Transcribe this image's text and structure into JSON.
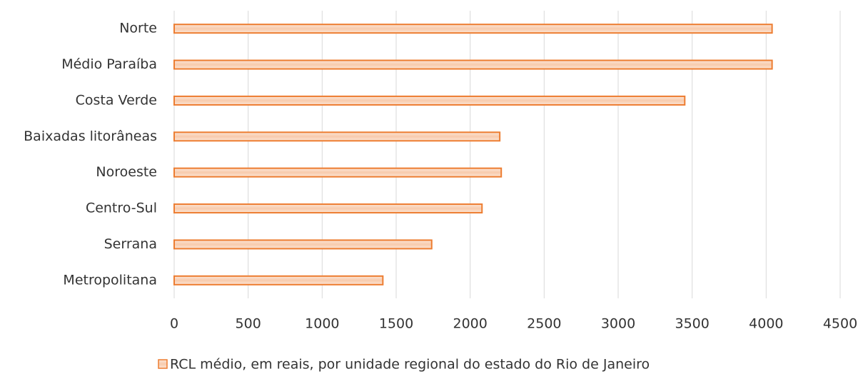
{
  "chart_data": {
    "type": "barh",
    "categories": [
      "Norte",
      "Médio Paraíba",
      "Costa Verde",
      "Baixadas litorâneas",
      "Noroeste",
      "Centro-Sul",
      "Serrana",
      "Metropolitana"
    ],
    "series": [
      {
        "name": "RCL médio, em reais, por unidade regional do estado do Rio de Janeiro",
        "color": "#ed7d31",
        "values": [
          4040,
          4040,
          3450,
          2200,
          2210,
          2080,
          1740,
          1410
        ]
      }
    ],
    "xlim": [
      0,
      4500
    ],
    "xticks": [
      0,
      500,
      1000,
      1500,
      2000,
      2500,
      3000,
      3500,
      4000,
      4500
    ],
    "grid": true,
    "legend": "bottom"
  }
}
